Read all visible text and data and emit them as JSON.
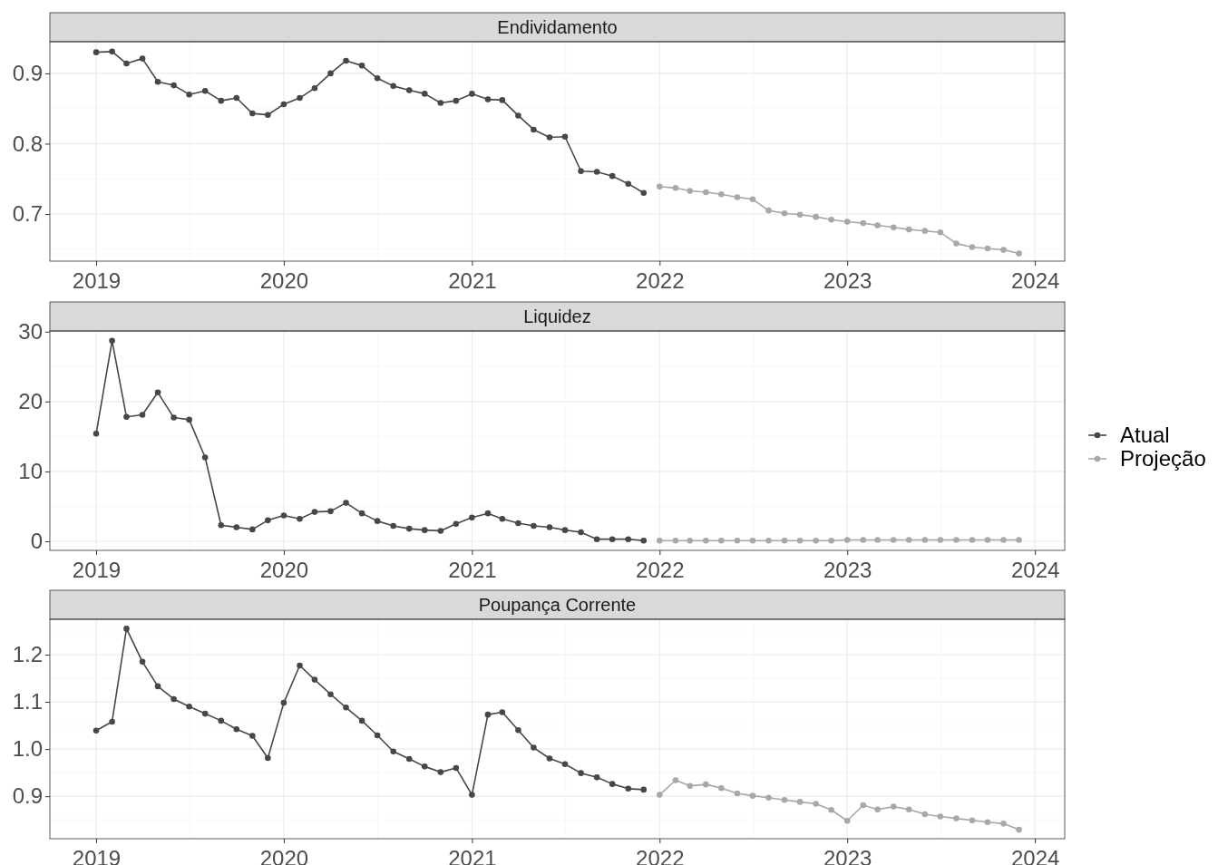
{
  "chart_data": [
    {
      "type": "line",
      "title": "Endividamento",
      "marker": "circle",
      "grid": true,
      "legend": "right",
      "xlim": [
        "2018-10-03",
        "2024-02-28"
      ],
      "xticks": [
        "2019",
        "2020",
        "2021",
        "2022",
        "2023",
        "2024"
      ],
      "ylim": [
        0.633,
        0.945
      ],
      "yticks": [
        0.7,
        0.8,
        0.9
      ],
      "series": [
        {
          "name": "Atual",
          "color": "#474747",
          "x": [
            "2019-01",
            "2019-02",
            "2019-03",
            "2019-04",
            "2019-05",
            "2019-06",
            "2019-07",
            "2019-08",
            "2019-09",
            "2019-10",
            "2019-11",
            "2019-12",
            "2020-01",
            "2020-02",
            "2020-03",
            "2020-04",
            "2020-05",
            "2020-06",
            "2020-07",
            "2020-08",
            "2020-09",
            "2020-10",
            "2020-11",
            "2020-12",
            "2021-01",
            "2021-02",
            "2021-03",
            "2021-04",
            "2021-05",
            "2021-06",
            "2021-07",
            "2021-08",
            "2021-09",
            "2021-10",
            "2021-11",
            "2021-12"
          ],
          "values": [
            0.93,
            0.931,
            0.914,
            0.921,
            0.888,
            0.883,
            0.87,
            0.875,
            0.861,
            0.865,
            0.843,
            0.841,
            0.856,
            0.865,
            0.879,
            0.9,
            0.918,
            0.911,
            0.893,
            0.882,
            0.876,
            0.871,
            0.858,
            0.861,
            0.871,
            0.863,
            0.862,
            0.84,
            0.82,
            0.809,
            0.81,
            0.761,
            0.76,
            0.754,
            0.743,
            0.73
          ]
        },
        {
          "name": "Projeção",
          "color": "#a8a8a8",
          "x": [
            "2022-01",
            "2022-02",
            "2022-03",
            "2022-04",
            "2022-05",
            "2022-06",
            "2022-07",
            "2022-08",
            "2022-09",
            "2022-10",
            "2022-11",
            "2022-12",
            "2023-01",
            "2023-02",
            "2023-03",
            "2023-04",
            "2023-05",
            "2023-06",
            "2023-07",
            "2023-08",
            "2023-09",
            "2023-10",
            "2023-11",
            "2023-12"
          ],
          "values": [
            0.739,
            0.737,
            0.733,
            0.731,
            0.728,
            0.724,
            0.721,
            0.705,
            0.701,
            0.699,
            0.696,
            0.692,
            0.689,
            0.687,
            0.684,
            0.681,
            0.678,
            0.676,
            0.674,
            0.658,
            0.653,
            0.651,
            0.649,
            0.644
          ]
        }
      ]
    },
    {
      "type": "line",
      "title": "Liquidez",
      "marker": "circle",
      "grid": true,
      "xlim": [
        "2018-10-03",
        "2024-02-28"
      ],
      "xticks": [
        "2019",
        "2020",
        "2021",
        "2022",
        "2023",
        "2024"
      ],
      "ylim": [
        -1.3,
        30.1
      ],
      "yticks": [
        0,
        10,
        20,
        30
      ],
      "series": [
        {
          "color": "#474747",
          "x": [
            "2019-01",
            "2019-02",
            "2019-03",
            "2019-04",
            "2019-05",
            "2019-06",
            "2019-07",
            "2019-08",
            "2019-09",
            "2019-10",
            "2019-11",
            "2019-12",
            "2020-01",
            "2020-02",
            "2020-03",
            "2020-04",
            "2020-05",
            "2020-06",
            "2020-07",
            "2020-08",
            "2020-09",
            "2020-10",
            "2020-11",
            "2020-12",
            "2021-01",
            "2021-02",
            "2021-03",
            "2021-04",
            "2021-05",
            "2021-06",
            "2021-07",
            "2021-08",
            "2021-09",
            "2021-10",
            "2021-11",
            "2021-12"
          ],
          "values": [
            15.4,
            28.7,
            17.8,
            18.1,
            21.3,
            17.7,
            17.4,
            12.0,
            2.3,
            2.0,
            1.7,
            3.0,
            3.7,
            3.2,
            4.2,
            4.3,
            5.5,
            4.0,
            2.9,
            2.2,
            1.8,
            1.6,
            1.5,
            2.5,
            3.4,
            4.0,
            3.2,
            2.6,
            2.2,
            2.0,
            1.6,
            1.3,
            0.3,
            0.3,
            0.3,
            0.1
          ]
        },
        {
          "color": "#a8a8a8",
          "x": [
            "2022-01",
            "2022-02",
            "2022-03",
            "2022-04",
            "2022-05",
            "2022-06",
            "2022-07",
            "2022-08",
            "2022-09",
            "2022-10",
            "2022-11",
            "2022-12",
            "2023-01",
            "2023-02",
            "2023-03",
            "2023-04",
            "2023-05",
            "2023-06",
            "2023-07",
            "2023-08",
            "2023-09",
            "2023-10",
            "2023-11",
            "2023-12"
          ],
          "values": [
            0.1,
            0.1,
            0.1,
            0.1,
            0.1,
            0.1,
            0.1,
            0.1,
            0.1,
            0.1,
            0.1,
            0.1,
            0.2,
            0.2,
            0.2,
            0.2,
            0.2,
            0.2,
            0.2,
            0.2,
            0.2,
            0.2,
            0.2,
            0.2
          ]
        }
      ]
    },
    {
      "type": "line",
      "title": "Poupança Corrente",
      "marker": "circle",
      "grid": true,
      "xlim": [
        "2018-10-03",
        "2024-02-28"
      ],
      "xticks": [
        "2019",
        "2020",
        "2021",
        "2022",
        "2023",
        "2024"
      ],
      "ylim": [
        0.81,
        1.275
      ],
      "yticks": [
        0.9,
        {
          "value": 1,
          "label": "1.0"
        },
        1.1,
        1.2
      ],
      "series": [
        {
          "color": "#474747",
          "x": [
            "2019-01",
            "2019-02",
            "2019-03",
            "2019-04",
            "2019-05",
            "2019-06",
            "2019-07",
            "2019-08",
            "2019-09",
            "2019-10",
            "2019-11",
            "2019-12",
            "2020-01",
            "2020-02",
            "2020-03",
            "2020-04",
            "2020-05",
            "2020-06",
            "2020-07",
            "2020-08",
            "2020-09",
            "2020-10",
            "2020-11",
            "2020-12",
            "2021-01",
            "2021-02",
            "2021-03",
            "2021-04",
            "2021-05",
            "2021-06",
            "2021-07",
            "2021-08",
            "2021-09",
            "2021-10",
            "2021-11",
            "2021-12"
          ],
          "values": [
            1.039,
            1.058,
            1.255,
            1.185,
            1.133,
            1.106,
            1.09,
            1.075,
            1.06,
            1.042,
            1.028,
            0.981,
            1.098,
            1.177,
            1.147,
            1.116,
            1.088,
            1.06,
            1.029,
            0.995,
            0.979,
            0.963,
            0.951,
            0.96,
            0.903,
            1.073,
            1.078,
            1.04,
            1.003,
            0.98,
            0.968,
            0.949,
            0.94,
            0.926,
            0.916,
            0.914
          ]
        },
        {
          "color": "#a8a8a8",
          "x": [
            "2022-01",
            "2022-02",
            "2022-03",
            "2022-04",
            "2022-05",
            "2022-06",
            "2022-07",
            "2022-08",
            "2022-09",
            "2022-10",
            "2022-11",
            "2022-12",
            "2023-01",
            "2023-02",
            "2023-03",
            "2023-04",
            "2023-05",
            "2023-06",
            "2023-07",
            "2023-08",
            "2023-09",
            "2023-10",
            "2023-11",
            "2023-12"
          ],
          "values": [
            0.903,
            0.934,
            0.922,
            0.925,
            0.917,
            0.906,
            0.901,
            0.897,
            0.892,
            0.888,
            0.884,
            0.871,
            0.848,
            0.881,
            0.872,
            0.878,
            0.872,
            0.862,
            0.857,
            0.853,
            0.849,
            0.845,
            0.842,
            0.829
          ]
        }
      ]
    }
  ]
}
